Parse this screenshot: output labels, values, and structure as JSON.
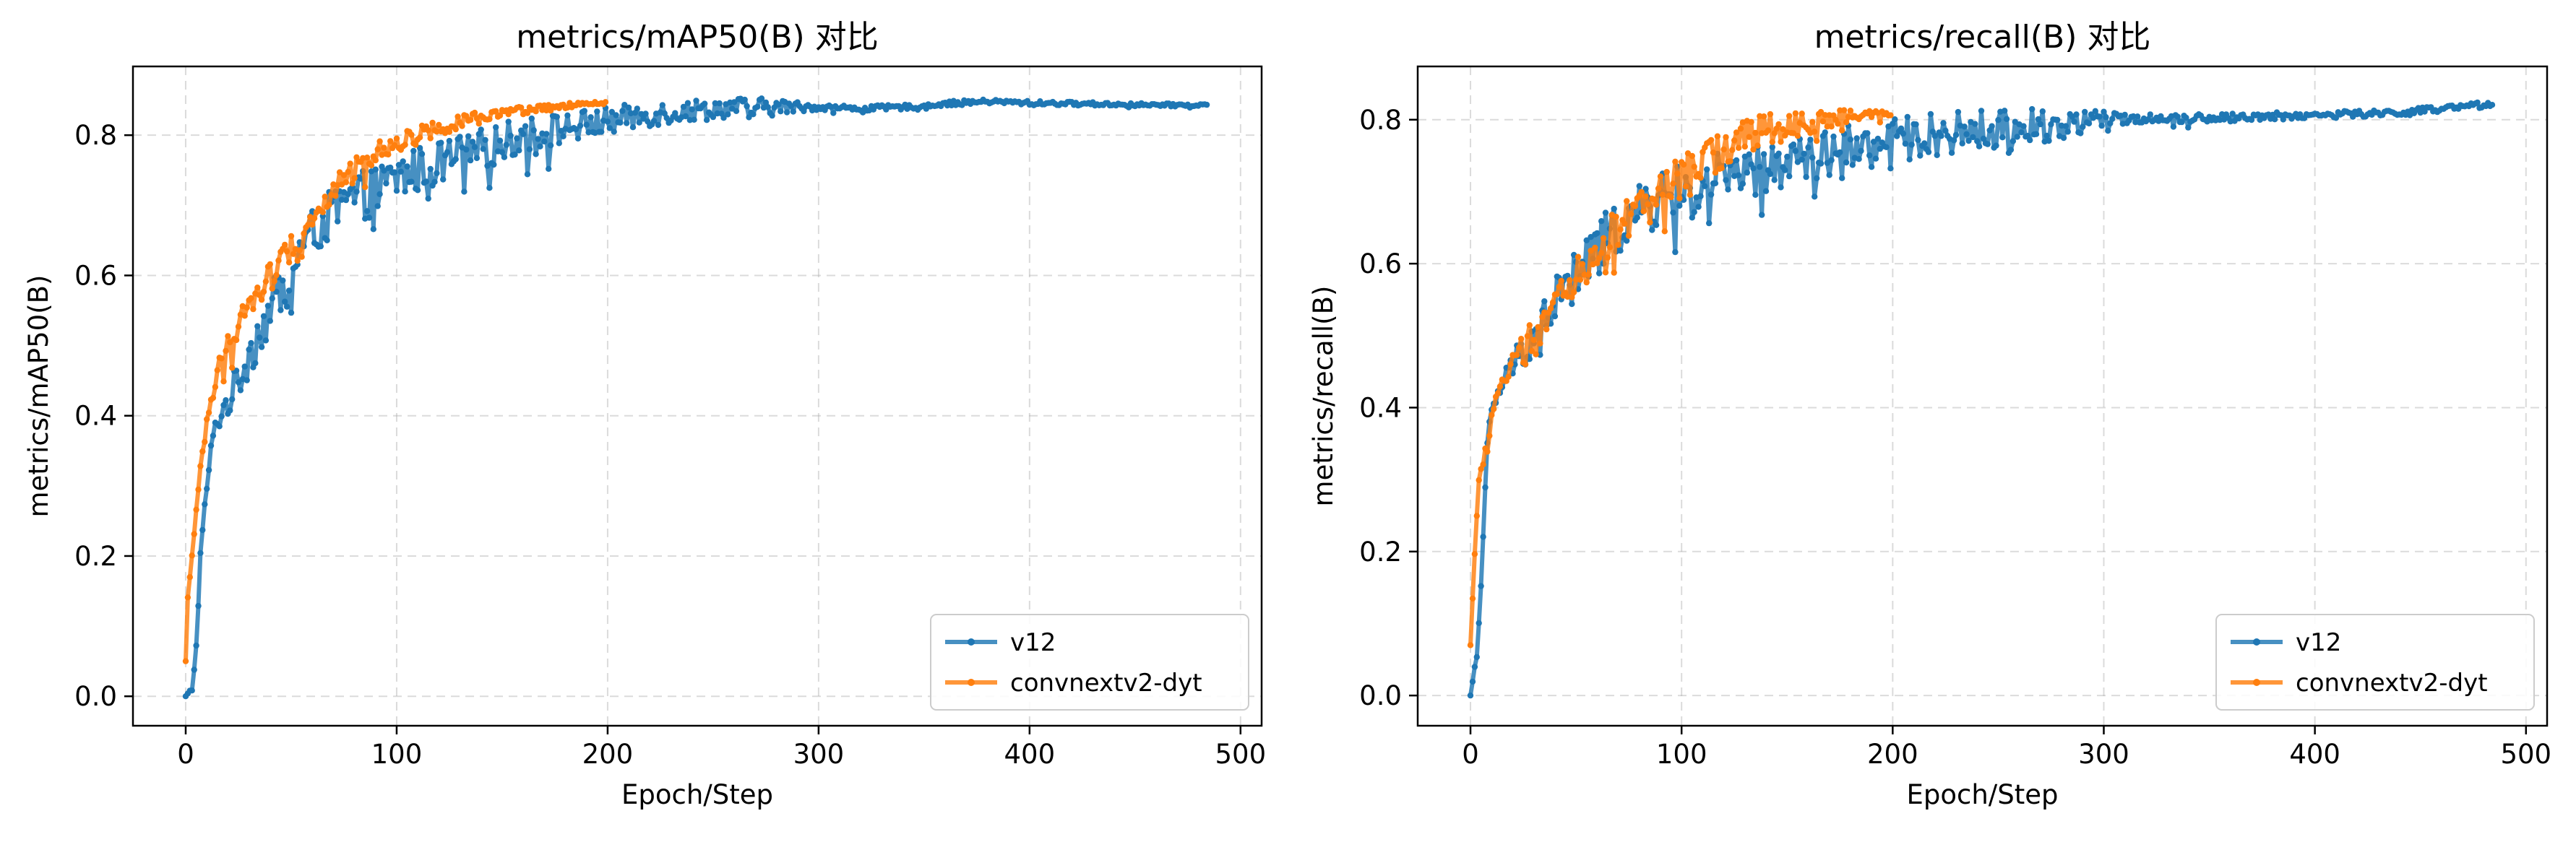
{
  "colors": {
    "v12": "#1f77b4",
    "convnextv2-dyt": "#ff7f0e"
  },
  "chart_data": [
    {
      "type": "line",
      "title": "metrics/mAP50(B) 对比",
      "xlabel": "Epoch/Step",
      "ylabel": "metrics/mAP50(B)",
      "xlim": [
        -25,
        510
      ],
      "ylim": [
        -0.042,
        0.898
      ],
      "xticks": [
        0,
        100,
        200,
        300,
        400,
        500
      ],
      "yticks": [
        0.0,
        0.2,
        0.4,
        0.6,
        0.8
      ],
      "grid": true,
      "legend": "lower-right",
      "series": [
        {
          "name": "v12",
          "color": "#1f77b4",
          "points": [
            [
              0,
              0.0
            ],
            [
              3,
              0.01
            ],
            [
              5,
              0.07
            ],
            [
              7,
              0.2
            ],
            [
              10,
              0.3
            ],
            [
              13,
              0.37
            ],
            [
              16,
              0.4
            ],
            [
              20,
              0.42
            ],
            [
              25,
              0.45
            ],
            [
              30,
              0.49
            ],
            [
              35,
              0.52
            ],
            [
              40,
              0.55
            ],
            [
              45,
              0.58
            ],
            [
              50,
              0.61
            ],
            [
              55,
              0.64
            ],
            [
              60,
              0.66
            ],
            [
              70,
              0.69
            ],
            [
              80,
              0.71
            ],
            [
              90,
              0.72
            ],
            [
              100,
              0.74
            ],
            [
              110,
              0.75
            ],
            [
              120,
              0.76
            ],
            [
              130,
              0.77
            ],
            [
              140,
              0.78
            ],
            [
              150,
              0.79
            ],
            [
              160,
              0.8
            ],
            [
              170,
              0.805
            ],
            [
              180,
              0.81
            ],
            [
              190,
              0.815
            ],
            [
              200,
              0.82
            ],
            [
              210,
              0.825
            ],
            [
              220,
              0.83
            ],
            [
              240,
              0.835
            ],
            [
              260,
              0.84
            ],
            [
              280,
              0.84
            ],
            [
              300,
              0.84
            ],
            [
              320,
              0.838
            ],
            [
              340,
              0.84
            ],
            [
              360,
              0.845
            ],
            [
              380,
              0.848
            ],
            [
              400,
              0.846
            ],
            [
              420,
              0.845
            ],
            [
              440,
              0.844
            ],
            [
              460,
              0.843
            ],
            [
              484,
              0.843
            ]
          ],
          "jitter": [
            [
              0,
              0.0
            ],
            [
              30,
              0.035
            ],
            [
              100,
              0.035
            ],
            [
              200,
              0.02
            ],
            [
              280,
              0.012
            ],
            [
              300,
              0.004
            ],
            [
              484,
              0.002
            ]
          ]
        },
        {
          "name": "convnextv2-dyt",
          "color": "#ff7f0e",
          "points": [
            [
              0,
              0.05
            ],
            [
              1,
              0.14
            ],
            [
              3,
              0.2
            ],
            [
              5,
              0.27
            ],
            [
              8,
              0.35
            ],
            [
              11,
              0.41
            ],
            [
              15,
              0.46
            ],
            [
              20,
              0.5
            ],
            [
              25,
              0.53
            ],
            [
              30,
              0.56
            ],
            [
              40,
              0.6
            ],
            [
              50,
              0.64
            ],
            [
              60,
              0.68
            ],
            [
              70,
              0.72
            ],
            [
              80,
              0.75
            ],
            [
              90,
              0.775
            ],
            [
              100,
              0.79
            ],
            [
              110,
              0.8
            ],
            [
              120,
              0.81
            ],
            [
              130,
              0.82
            ],
            [
              140,
              0.825
            ],
            [
              150,
              0.83
            ],
            [
              160,
              0.835
            ],
            [
              170,
              0.838
            ],
            [
              180,
              0.842
            ],
            [
              190,
              0.844
            ],
            [
              199,
              0.846
            ]
          ],
          "jitter": [
            [
              0,
              0.0
            ],
            [
              20,
              0.02
            ],
            [
              80,
              0.018
            ],
            [
              140,
              0.008
            ],
            [
              199,
              0.002
            ]
          ]
        }
      ]
    },
    {
      "type": "line",
      "title": "metrics/recall(B) 对比",
      "xlabel": "Epoch/Step",
      "ylabel": "metrics/recall(B)",
      "xlim": [
        -25,
        510
      ],
      "ylim": [
        -0.042,
        0.874
      ],
      "xticks": [
        0,
        100,
        200,
        300,
        400,
        500
      ],
      "yticks": [
        0.0,
        0.2,
        0.4,
        0.6,
        0.8
      ],
      "grid": true,
      "legend": "lower-right",
      "series": [
        {
          "name": "v12",
          "color": "#1f77b4",
          "points": [
            [
              0,
              0.0
            ],
            [
              3,
              0.06
            ],
            [
              5,
              0.15
            ],
            [
              8,
              0.35
            ],
            [
              10,
              0.4
            ],
            [
              15,
              0.43
            ],
            [
              20,
              0.46
            ],
            [
              30,
              0.5
            ],
            [
              40,
              0.55
            ],
            [
              50,
              0.58
            ],
            [
              60,
              0.62
            ],
            [
              70,
              0.65
            ],
            [
              80,
              0.67
            ],
            [
              90,
              0.69
            ],
            [
              100,
              0.7
            ],
            [
              120,
              0.72
            ],
            [
              140,
              0.73
            ],
            [
              160,
              0.75
            ],
            [
              180,
              0.76
            ],
            [
              200,
              0.77
            ],
            [
              220,
              0.78
            ],
            [
              240,
              0.785
            ],
            [
              260,
              0.79
            ],
            [
              280,
              0.795
            ],
            [
              300,
              0.8
            ],
            [
              320,
              0.802
            ],
            [
              340,
              0.802
            ],
            [
              360,
              0.803
            ],
            [
              380,
              0.805
            ],
            [
              400,
              0.806
            ],
            [
              420,
              0.808
            ],
            [
              440,
              0.81
            ],
            [
              460,
              0.815
            ],
            [
              484,
              0.822
            ]
          ],
          "jitter": [
            [
              0,
              0.0
            ],
            [
              40,
              0.04
            ],
            [
              150,
              0.035
            ],
            [
              280,
              0.025
            ],
            [
              310,
              0.006
            ],
            [
              484,
              0.004
            ]
          ]
        },
        {
          "name": "convnextv2-dyt",
          "color": "#ff7f0e",
          "points": [
            [
              0,
              0.07
            ],
            [
              2,
              0.2
            ],
            [
              4,
              0.3
            ],
            [
              8,
              0.35
            ],
            [
              12,
              0.42
            ],
            [
              20,
              0.46
            ],
            [
              30,
              0.5
            ],
            [
              40,
              0.54
            ],
            [
              50,
              0.58
            ],
            [
              60,
              0.62
            ],
            [
              70,
              0.65
            ],
            [
              80,
              0.68
            ],
            [
              90,
              0.7
            ],
            [
              100,
              0.72
            ],
            [
              110,
              0.74
            ],
            [
              120,
              0.76
            ],
            [
              130,
              0.775
            ],
            [
              140,
              0.785
            ],
            [
              150,
              0.79
            ],
            [
              160,
              0.795
            ],
            [
              170,
              0.8
            ],
            [
              180,
              0.805
            ],
            [
              190,
              0.806
            ],
            [
              199,
              0.807
            ]
          ],
          "jitter": [
            [
              0,
              0.0
            ],
            [
              30,
              0.025
            ],
            [
              120,
              0.03
            ],
            [
              170,
              0.012
            ],
            [
              199,
              0.004
            ]
          ]
        }
      ]
    }
  ]
}
